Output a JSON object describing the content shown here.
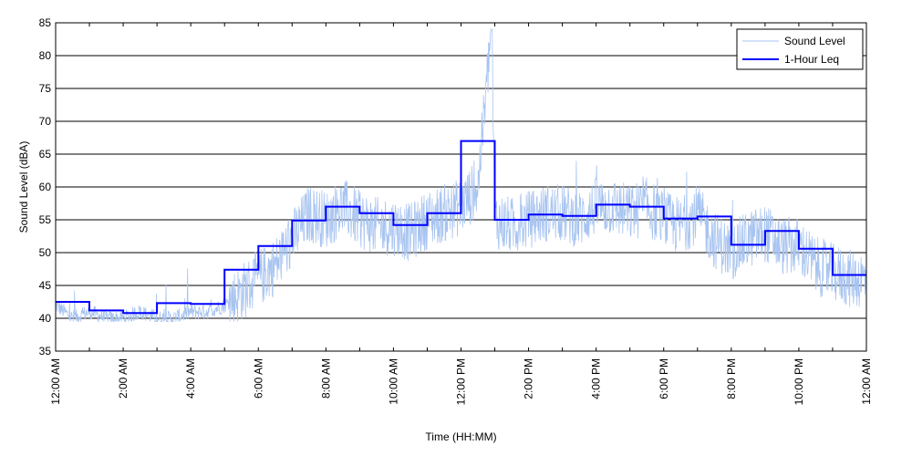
{
  "chart_data": {
    "type": "line",
    "xlabel": "Time (HH:MM)",
    "ylabel": "Sound Level (dBA)",
    "ylim": [
      35,
      85
    ],
    "yticks": [
      35,
      40,
      45,
      50,
      55,
      60,
      65,
      70,
      75,
      80,
      85
    ],
    "xlim_hours": [
      0,
      24
    ],
    "xtick_hours": [
      0,
      2,
      4,
      6,
      8,
      10,
      12,
      14,
      16,
      18,
      20,
      22,
      24
    ],
    "xtick_labels": [
      "12:00 AM",
      "2:00 AM",
      "4:00 AM",
      "6:00 AM",
      "8:00 AM",
      "10:00 AM",
      "12:00 PM",
      "2:00 PM",
      "4:00 PM",
      "6:00 PM",
      "8:00 PM",
      "10:00 PM",
      "12:00 AM"
    ],
    "grid": "horizontal",
    "legend_position": "top-right",
    "series": [
      {
        "name": "Sound Level",
        "color": "#a8c4f0",
        "style": "thin-line",
        "hour_x": [
          0.0,
          0.5,
          1.0,
          1.5,
          2.0,
          2.5,
          3.0,
          3.5,
          4.0,
          4.5,
          5.0,
          5.5,
          6.0,
          6.5,
          7.0,
          7.5,
          8.0,
          8.5,
          9.0,
          9.5,
          10.0,
          10.5,
          11.0,
          11.5,
          12.0,
          12.5,
          12.9,
          13.0,
          13.5,
          14.0,
          14.5,
          15.0,
          15.5,
          16.0,
          16.5,
          17.0,
          17.5,
          18.0,
          18.5,
          19.0,
          19.5,
          20.0,
          20.5,
          21.0,
          21.5,
          22.0,
          22.5,
          23.0,
          23.5,
          24.0
        ],
        "values": [
          42,
          40,
          41,
          40,
          40,
          41,
          40,
          40,
          41,
          41,
          42,
          44,
          46,
          48,
          52,
          56,
          55,
          57,
          55,
          54,
          54,
          53,
          55,
          56,
          57,
          60,
          84,
          55,
          54,
          55,
          56,
          56,
          55,
          57,
          57,
          56,
          57,
          55,
          54,
          56,
          52,
          50,
          52,
          53,
          51,
          51,
          48,
          47,
          46,
          46
        ]
      },
      {
        "name": "1-Hour Leq",
        "color": "#0000ff",
        "style": "step",
        "hour_x": [
          0,
          1,
          2,
          3,
          4,
          5,
          6,
          7,
          8,
          9,
          10,
          11,
          12,
          13,
          14,
          15,
          16,
          17,
          18,
          19,
          20,
          21,
          22,
          23,
          24
        ],
        "values": [
          42.5,
          41.2,
          40.8,
          42.3,
          42.2,
          47.4,
          51.0,
          54.9,
          57.0,
          56.0,
          54.2,
          56.0,
          67.0,
          55.0,
          55.8,
          55.6,
          57.3,
          57.0,
          55.2,
          55.5,
          51.2,
          53.3,
          50.6,
          46.6
        ]
      }
    ]
  }
}
